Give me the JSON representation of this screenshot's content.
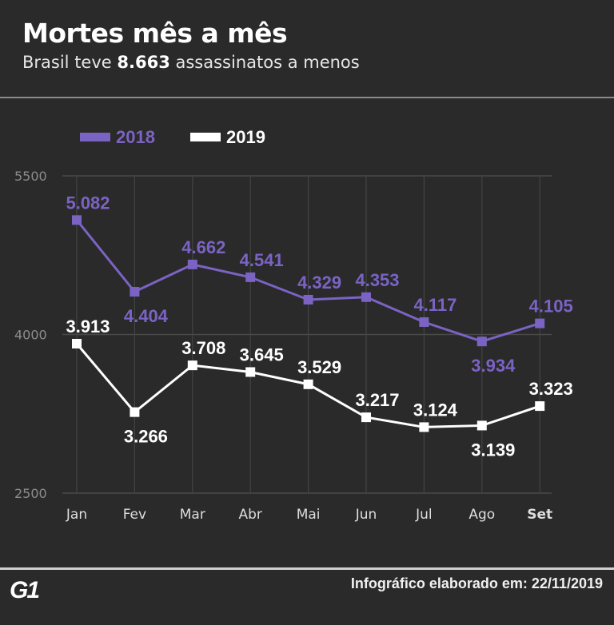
{
  "header": {
    "title": "Mortes mês a mês",
    "subtitle_prefix": "Brasil teve ",
    "subtitle_bold": "8.663",
    "subtitle_suffix": " assassinatos a menos"
  },
  "footer": {
    "logo": "G1",
    "note": "Infográfico elaborado em: 22/11/2019"
  },
  "chart_data": {
    "type": "line",
    "title": "Mortes mês a mês",
    "categories": [
      "Jan",
      "Fev",
      "Mar",
      "Abr",
      "Mai",
      "Jun",
      "Jul",
      "Ago",
      "Set"
    ],
    "ylim": [
      2500,
      5500
    ],
    "yticks": [
      2500,
      4000,
      5500
    ],
    "ytick_labels": [
      "2500",
      "4000",
      "5500"
    ],
    "grid": true,
    "legend": "top-left",
    "series": [
      {
        "name": "2018",
        "color": "#7b63c4",
        "values": [
          5082,
          4404,
          4662,
          4541,
          4329,
          4353,
          4117,
          3934,
          4105
        ],
        "labels": [
          "5.082",
          "4.404",
          "4.662",
          "4.541",
          "4.329",
          "4.353",
          "4.117",
          "3.934",
          "4.105"
        ],
        "label_side": [
          "above",
          "below",
          "above",
          "above",
          "above",
          "above",
          "above",
          "below",
          "above"
        ]
      },
      {
        "name": "2019",
        "color": "#ffffff",
        "values": [
          3913,
          3266,
          3708,
          3645,
          3529,
          3217,
          3124,
          3139,
          3323
        ],
        "labels": [
          "3.913",
          "3.266",
          "3.708",
          "3.645",
          "3.529",
          "3.217",
          "3.124",
          "3.139",
          "3.323"
        ],
        "label_side": [
          "above",
          "below",
          "above",
          "above",
          "above",
          "above",
          "above",
          "below",
          "above"
        ]
      }
    ]
  }
}
